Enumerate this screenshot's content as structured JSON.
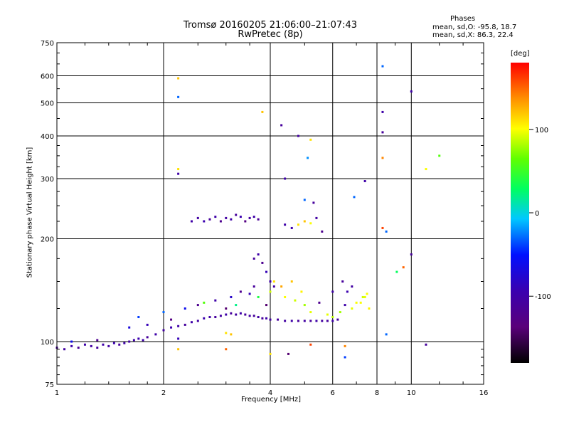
{
  "chart_data": {
    "type": "scatter",
    "title": "Tromsø 20160205 21:06:00–21:07:43",
    "subtitle": "RwPretec (8p)",
    "stats": {
      "heading": "Phases",
      "line1": "mean, sd,O: -95.8, 18.7",
      "line2": "mean, sd,X: 86.3, 22.4"
    },
    "xlabel": "Frequency [MHz]",
    "ylabel": "Stationary phase Virtual Height [km]",
    "x_scale": "log",
    "y_scale": "log",
    "xlim": [
      1,
      16
    ],
    "ylim": [
      75,
      750
    ],
    "x_ticks": [
      1,
      2,
      4,
      6,
      8,
      10,
      16
    ],
    "x_tick_labels": [
      "1",
      "2",
      "4",
      "6",
      "8",
      "10",
      "16"
    ],
    "y_ticks": [
      75,
      100,
      200,
      300,
      400,
      500,
      600,
      750
    ],
    "y_tick_labels": [
      "75",
      "100",
      "200",
      "300",
      "400",
      "500",
      "600",
      "750"
    ],
    "grid": true,
    "colorbar": {
      "label": "[deg]",
      "range": [
        -180,
        180
      ],
      "ticks": [
        100,
        0,
        -100
      ],
      "tick_labels": [
        "100",
        "0",
        "-100"
      ],
      "colormap": "rainbow: black→purple→blue→cyan→green→yellow→orange→red"
    },
    "series": [
      {
        "trace": "low-trace",
        "points": [
          [
            1.0,
            96,
            -110
          ],
          [
            1.05,
            95,
            -105
          ],
          [
            1.1,
            97,
            -100
          ],
          [
            1.15,
            96,
            -115
          ],
          [
            1.2,
            98,
            -100
          ],
          [
            1.25,
            97,
            -105
          ],
          [
            1.3,
            96,
            -110
          ],
          [
            1.35,
            98,
            -100
          ],
          [
            1.4,
            97,
            -105
          ],
          [
            1.45,
            99,
            -95
          ],
          [
            1.5,
            98,
            -110
          ],
          [
            1.55,
            99,
            -100
          ],
          [
            1.6,
            100,
            -105
          ],
          [
            1.65,
            101,
            -100
          ],
          [
            1.7,
            102,
            -95
          ],
          [
            1.75,
            101,
            -100
          ],
          [
            1.8,
            103,
            -110
          ],
          [
            1.9,
            105,
            -100
          ],
          [
            2.0,
            108,
            -105
          ],
          [
            2.1,
            110,
            -95
          ],
          [
            2.2,
            111,
            -100
          ],
          [
            2.3,
            112,
            -110
          ],
          [
            2.4,
            114,
            -100
          ],
          [
            2.5,
            115,
            -105
          ],
          [
            2.6,
            117,
            -95
          ],
          [
            2.7,
            118,
            -100
          ],
          [
            2.8,
            118,
            -110
          ],
          [
            2.9,
            119,
            -105
          ],
          [
            3.0,
            120,
            -100
          ],
          [
            3.1,
            121,
            -110
          ],
          [
            3.2,
            120,
            -105
          ],
          [
            3.3,
            121,
            -100
          ],
          [
            3.4,
            120,
            -110
          ],
          [
            3.5,
            119,
            -105
          ],
          [
            3.6,
            119,
            -110
          ],
          [
            3.7,
            118,
            -105
          ],
          [
            3.8,
            117,
            -110
          ],
          [
            3.9,
            117,
            -100
          ],
          [
            4.0,
            116,
            -105
          ],
          [
            4.2,
            116,
            -110
          ],
          [
            4.4,
            115,
            -105
          ],
          [
            4.6,
            115,
            -100
          ],
          [
            4.8,
            115,
            -110
          ],
          [
            5.0,
            115,
            -105
          ],
          [
            5.2,
            115,
            -110
          ],
          [
            5.4,
            115,
            -100
          ],
          [
            5.6,
            115,
            -105
          ],
          [
            5.8,
            115,
            -110
          ],
          [
            6.0,
            115,
            -100
          ],
          [
            6.2,
            116,
            -105
          ]
        ]
      },
      {
        "trace": "scatter-lower",
        "points": [
          [
            1.1,
            100,
            -60
          ],
          [
            1.3,
            101,
            -120
          ],
          [
            1.6,
            110,
            -70
          ],
          [
            1.7,
            118,
            -40
          ],
          [
            1.8,
            112,
            -90
          ],
          [
            2.0,
            122,
            -30
          ],
          [
            2.1,
            116,
            -130
          ],
          [
            2.3,
            125,
            -60
          ],
          [
            2.5,
            128,
            -120
          ],
          [
            2.6,
            130,
            60
          ],
          [
            2.8,
            132,
            -100
          ],
          [
            3.0,
            125,
            -140
          ],
          [
            3.1,
            135,
            -80
          ],
          [
            3.2,
            128,
            20
          ],
          [
            3.3,
            140,
            -120
          ],
          [
            3.5,
            138,
            -90
          ],
          [
            3.6,
            145,
            -110
          ],
          [
            3.7,
            135,
            40
          ],
          [
            3.9,
            128,
            -140
          ],
          [
            4.0,
            140,
            90
          ],
          [
            4.1,
            150,
            110
          ],
          [
            4.3,
            145,
            130
          ],
          [
            4.4,
            135,
            100
          ],
          [
            4.6,
            150,
            120
          ],
          [
            4.7,
            132,
            90
          ],
          [
            4.9,
            140,
            105
          ],
          [
            5.0,
            128,
            80
          ],
          [
            5.2,
            122,
            95
          ],
          [
            5.5,
            130,
            -120
          ],
          [
            5.8,
            120,
            95
          ],
          [
            6.0,
            118,
            85
          ],
          [
            6.3,
            122,
            80
          ],
          [
            6.5,
            128,
            -100
          ],
          [
            6.8,
            125,
            95
          ],
          [
            7.0,
            130,
            100
          ],
          [
            7.3,
            135,
            90
          ],
          [
            7.5,
            138,
            100
          ],
          [
            3.0,
            106,
            110
          ],
          [
            3.1,
            105,
            120
          ],
          [
            2.2,
            102,
            -90
          ]
        ]
      },
      {
        "trace": "high-trace",
        "points": [
          [
            3.6,
            175,
            -110
          ],
          [
            3.7,
            180,
            -100
          ],
          [
            3.8,
            170,
            -120
          ],
          [
            3.9,
            160,
            -90
          ],
          [
            4.0,
            150,
            -100
          ],
          [
            4.1,
            145,
            -105
          ],
          [
            4.4,
            220,
            -100
          ],
          [
            4.6,
            215,
            -95
          ],
          [
            4.8,
            220,
            110
          ],
          [
            5.0,
            225,
            120
          ],
          [
            5.2,
            222,
            100
          ],
          [
            5.4,
            230,
            -105
          ],
          [
            5.6,
            210,
            -120
          ],
          [
            6.0,
            140,
            -100
          ],
          [
            6.4,
            150,
            -110
          ],
          [
            6.6,
            140,
            -95
          ],
          [
            6.8,
            145,
            -105
          ],
          [
            7.2,
            130,
            100
          ],
          [
            7.4,
            135,
            95
          ],
          [
            7.6,
            125,
            105
          ]
        ]
      },
      {
        "trace": "f2-trace",
        "points": [
          [
            2.4,
            225,
            -100
          ],
          [
            2.5,
            230,
            -105
          ],
          [
            2.6,
            225,
            -95
          ],
          [
            2.7,
            228,
            -110
          ],
          [
            2.8,
            232,
            -100
          ],
          [
            2.9,
            225,
            -120
          ],
          [
            3.0,
            230,
            -105
          ],
          [
            3.1,
            228,
            -100
          ],
          [
            3.2,
            235,
            -110
          ],
          [
            3.3,
            232,
            -95
          ],
          [
            3.4,
            225,
            -130
          ],
          [
            3.5,
            230,
            -105
          ],
          [
            3.6,
            232,
            -100
          ],
          [
            3.7,
            228,
            -115
          ]
        ]
      },
      {
        "trace": "sparse",
        "points": [
          [
            2.2,
            590,
            120
          ],
          [
            2.2,
            520,
            -30
          ],
          [
            2.2,
            320,
            110
          ],
          [
            2.2,
            310,
            -100
          ],
          [
            3.8,
            470,
            120
          ],
          [
            4.3,
            430,
            -110
          ],
          [
            4.8,
            400,
            -105
          ],
          [
            5.2,
            390,
            110
          ],
          [
            5.1,
            345,
            -20
          ],
          [
            4.4,
            300,
            -100
          ],
          [
            5.0,
            260,
            -30
          ],
          [
            5.3,
            255,
            -110
          ],
          [
            7.4,
            295,
            -100
          ],
          [
            6.9,
            265,
            -30
          ],
          [
            8.3,
            640,
            -30
          ],
          [
            8.3,
            470,
            -100
          ],
          [
            8.3,
            410,
            -110
          ],
          [
            8.3,
            345,
            140
          ],
          [
            8.3,
            215,
            160
          ],
          [
            10.0,
            540,
            -100
          ],
          [
            11.0,
            320,
            100
          ],
          [
            12.0,
            350,
            60
          ],
          [
            8.5,
            210,
            -30
          ],
          [
            9.1,
            160,
            30
          ],
          [
            9.5,
            165,
            150
          ],
          [
            10.0,
            180,
            -110
          ],
          [
            8.5,
            105,
            -30
          ],
          [
            11.0,
            98,
            -110
          ],
          [
            6.5,
            90,
            -40
          ],
          [
            6.5,
            97,
            140
          ],
          [
            4.0,
            92,
            110
          ],
          [
            4.5,
            92,
            -140
          ],
          [
            5.2,
            98,
            160
          ],
          [
            3.0,
            95,
            150
          ],
          [
            2.2,
            95,
            120
          ]
        ]
      }
    ]
  }
}
